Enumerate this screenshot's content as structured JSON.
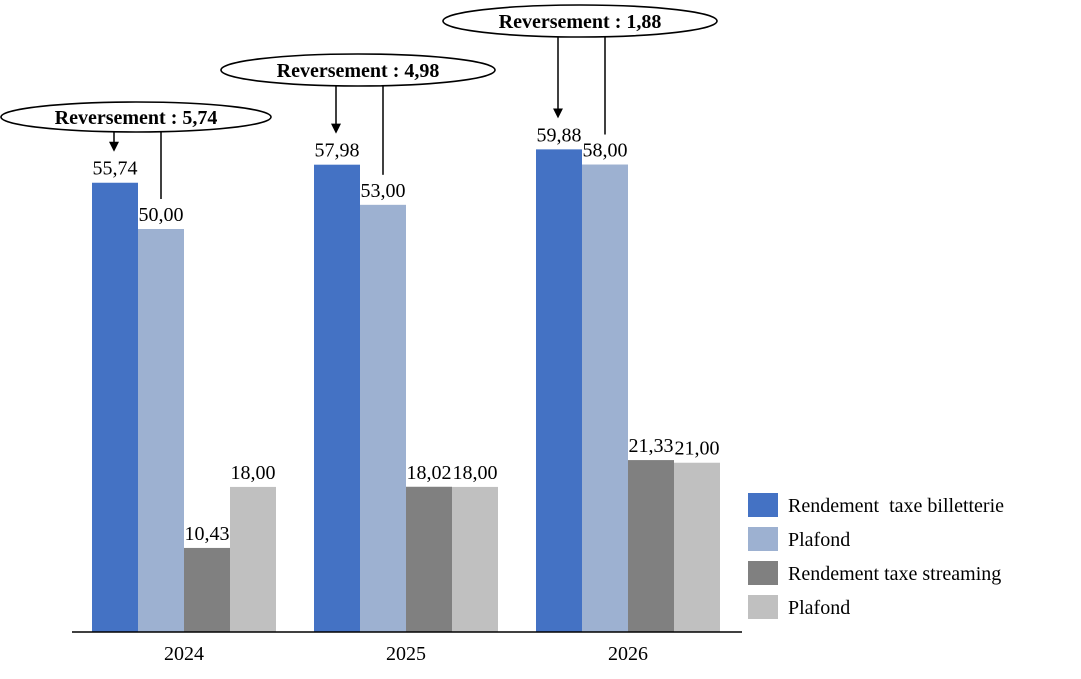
{
  "chart_data": {
    "type": "bar",
    "categories": [
      "2024",
      "2025",
      "2026"
    ],
    "series": [
      {
        "name": "Rendement  taxe billetterie",
        "values": [
          55.74,
          57.98,
          59.88
        ],
        "labels": [
          "55,74",
          "57,98",
          "59,88"
        ],
        "color": "#4472C4"
      },
      {
        "name": "Plafond",
        "values": [
          50.0,
          53.0,
          58.0
        ],
        "labels": [
          "50,00",
          "53,00",
          "58,00"
        ],
        "color": "#9DB1D1"
      },
      {
        "name": "Rendement taxe streaming",
        "values": [
          10.43,
          18.02,
          21.33
        ],
        "labels": [
          "10,43",
          "18,02",
          "21,33"
        ],
        "color": "#808080"
      },
      {
        "name": "Plafond",
        "values": [
          18.0,
          18.0,
          21.0
        ],
        "labels": [
          "18,00",
          "18,00",
          "21,00"
        ],
        "color": "#C0C0C0"
      }
    ],
    "annotations": [
      {
        "category": "2024",
        "text": "Reversement : 5,74"
      },
      {
        "category": "2025",
        "text": "Reversement : 4,98"
      },
      {
        "category": "2026",
        "text": "Reversement : 1,88"
      }
    ],
    "ylim": [
      0,
      70
    ],
    "grid": false,
    "legend_position": "bottom-right"
  }
}
